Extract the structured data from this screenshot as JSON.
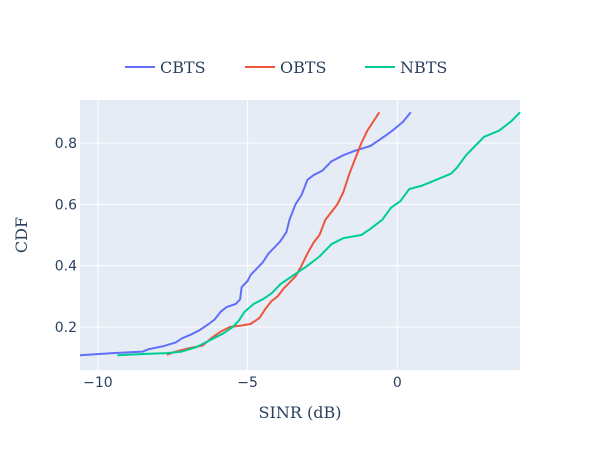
{
  "chart_data": {
    "type": "line",
    "xlabel": "SINR (dB)",
    "ylabel": "CDF",
    "xlim": [
      -10.6,
      4.1
    ],
    "ylim": [
      0.06,
      0.94
    ],
    "x_ticks": [
      -10,
      -5,
      0
    ],
    "x_tick_labels": [
      "−10",
      "−5",
      "0"
    ],
    "y_ticks": [
      0.2,
      0.4,
      0.6,
      0.8
    ],
    "y_tick_labels": [
      "0.2",
      "0.4",
      "0.6",
      "0.8"
    ],
    "grid": true,
    "legend_position": "top",
    "plot_background": "#e5ecf6",
    "series": [
      {
        "name": "CBTS",
        "color": "#636efa",
        "points": [
          [
            -10.6,
            0.108
          ],
          [
            -9.5,
            0.115
          ],
          [
            -8.5,
            0.12
          ],
          [
            -8.3,
            0.128
          ],
          [
            -7.8,
            0.138
          ],
          [
            -7.4,
            0.15
          ],
          [
            -7.2,
            0.163
          ],
          [
            -6.9,
            0.175
          ],
          [
            -6.6,
            0.19
          ],
          [
            -6.3,
            0.21
          ],
          [
            -6.1,
            0.225
          ],
          [
            -5.9,
            0.25
          ],
          [
            -5.7,
            0.265
          ],
          [
            -5.4,
            0.275
          ],
          [
            -5.25,
            0.29
          ],
          [
            -5.2,
            0.33
          ],
          [
            -5.0,
            0.35
          ],
          [
            -4.9,
            0.37
          ],
          [
            -4.7,
            0.39
          ],
          [
            -4.5,
            0.41
          ],
          [
            -4.3,
            0.44
          ],
          [
            -4.1,
            0.46
          ],
          [
            -3.9,
            0.48
          ],
          [
            -3.7,
            0.51
          ],
          [
            -3.6,
            0.55
          ],
          [
            -3.4,
            0.6
          ],
          [
            -3.2,
            0.63
          ],
          [
            -3.0,
            0.68
          ],
          [
            -2.8,
            0.695
          ],
          [
            -2.5,
            0.71
          ],
          [
            -2.2,
            0.74
          ],
          [
            -1.8,
            0.76
          ],
          [
            -1.4,
            0.775
          ],
          [
            -0.9,
            0.79
          ],
          [
            -0.6,
            0.81
          ],
          [
            -0.3,
            0.83
          ],
          [
            -0.1,
            0.845
          ],
          [
            0.2,
            0.87
          ],
          [
            0.45,
            0.9
          ]
        ]
      },
      {
        "name": "OBTS",
        "color": "#ef553b",
        "points": [
          [
            -7.7,
            0.11
          ],
          [
            -7.4,
            0.12
          ],
          [
            -7.0,
            0.13
          ],
          [
            -6.5,
            0.14
          ],
          [
            -6.2,
            0.165
          ],
          [
            -5.9,
            0.185
          ],
          [
            -5.6,
            0.2
          ],
          [
            -5.2,
            0.205
          ],
          [
            -4.9,
            0.21
          ],
          [
            -4.6,
            0.23
          ],
          [
            -4.4,
            0.26
          ],
          [
            -4.2,
            0.285
          ],
          [
            -4.0,
            0.3
          ],
          [
            -3.8,
            0.325
          ],
          [
            -3.6,
            0.345
          ],
          [
            -3.4,
            0.365
          ],
          [
            -3.2,
            0.4
          ],
          [
            -3.0,
            0.44
          ],
          [
            -2.8,
            0.475
          ],
          [
            -2.6,
            0.5
          ],
          [
            -2.4,
            0.55
          ],
          [
            -2.2,
            0.575
          ],
          [
            -2.0,
            0.6
          ],
          [
            -1.8,
            0.64
          ],
          [
            -1.6,
            0.7
          ],
          [
            -1.4,
            0.75
          ],
          [
            -1.2,
            0.8
          ],
          [
            -1.0,
            0.84
          ],
          [
            -0.8,
            0.87
          ],
          [
            -0.6,
            0.9
          ]
        ]
      },
      {
        "name": "NBTS",
        "color": "#00cc96",
        "points": [
          [
            -9.35,
            0.108
          ],
          [
            -8.5,
            0.112
          ],
          [
            -7.7,
            0.115
          ],
          [
            -7.2,
            0.12
          ],
          [
            -6.7,
            0.135
          ],
          [
            -6.2,
            0.16
          ],
          [
            -5.8,
            0.18
          ],
          [
            -5.5,
            0.2
          ],
          [
            -5.3,
            0.22
          ],
          [
            -5.1,
            0.25
          ],
          [
            -4.8,
            0.275
          ],
          [
            -4.5,
            0.29
          ],
          [
            -4.2,
            0.31
          ],
          [
            -3.9,
            0.34
          ],
          [
            -3.6,
            0.36
          ],
          [
            -3.3,
            0.38
          ],
          [
            -3.0,
            0.4
          ],
          [
            -2.6,
            0.43
          ],
          [
            -2.2,
            0.47
          ],
          [
            -1.8,
            0.49
          ],
          [
            -1.2,
            0.5
          ],
          [
            -0.9,
            0.52
          ],
          [
            -0.5,
            0.55
          ],
          [
            -0.2,
            0.59
          ],
          [
            0.1,
            0.61
          ],
          [
            0.4,
            0.65
          ],
          [
            0.8,
            0.66
          ],
          [
            1.3,
            0.68
          ],
          [
            1.8,
            0.7
          ],
          [
            2.0,
            0.72
          ],
          [
            2.3,
            0.76
          ],
          [
            2.6,
            0.79
          ],
          [
            2.9,
            0.82
          ],
          [
            3.4,
            0.84
          ],
          [
            3.8,
            0.87
          ],
          [
            4.1,
            0.9
          ]
        ]
      }
    ]
  }
}
